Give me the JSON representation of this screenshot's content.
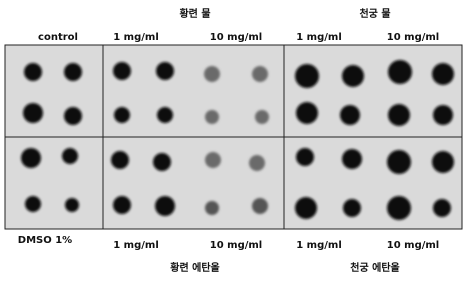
{
  "top": {
    "group_left": "황련 물",
    "group_right": "천궁 물",
    "labels": [
      "control",
      "1 mg/ml",
      "10 mg/ml",
      "1 mg/ml",
      "10 mg/ml"
    ]
  },
  "bottom": {
    "labels": [
      "DMSO 1%",
      "1 mg/ml",
      "10 mg/ml",
      "1 mg/ml",
      "10 mg/ml"
    ],
    "group_left": "황련 에탄올",
    "group_right": "천궁 에탄올"
  }
}
